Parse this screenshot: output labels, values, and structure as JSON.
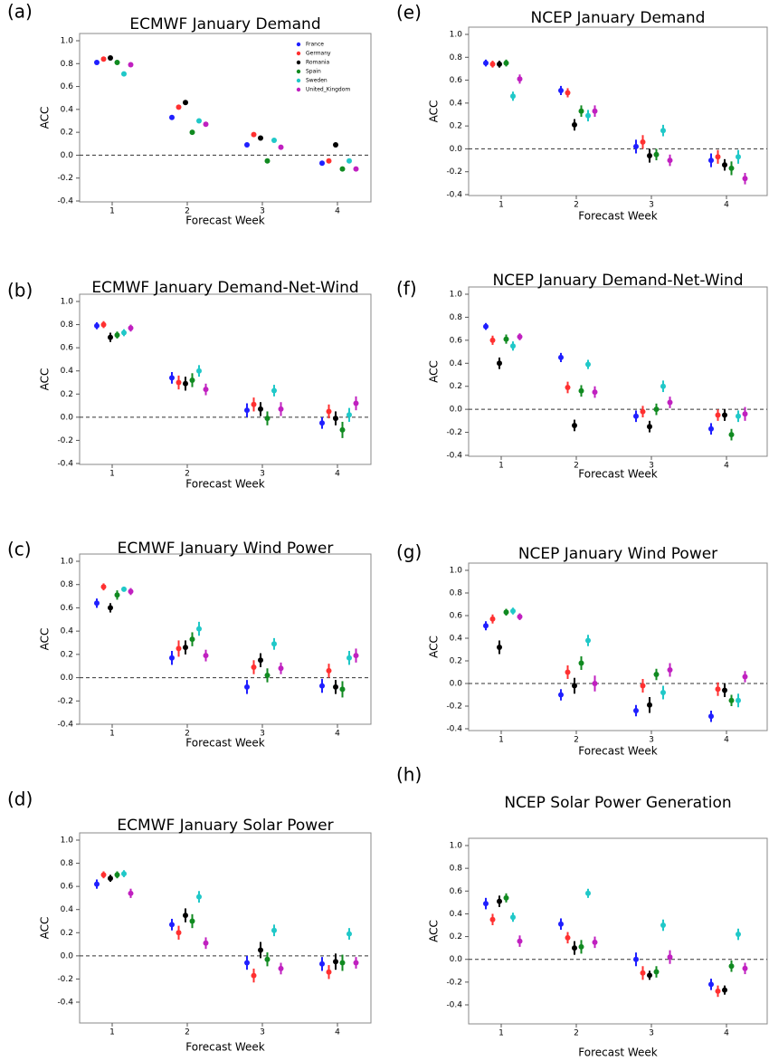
{
  "chart_data": [
    {
      "type": "point",
      "label": "(a)",
      "title": "ECMWF January Demand",
      "xlabel": "Forecast Week",
      "ylabel": "ACC",
      "categories": [
        "1",
        "2",
        "3",
        "4"
      ],
      "ylim": [
        -0.4,
        1.0
      ],
      "yticks": [
        -0.4,
        -0.2,
        {
          "value": 0,
          "label": "0.0"
        },
        0.2,
        0.4,
        0.6,
        0.8,
        {
          "value": 1,
          "label": "1.0"
        }
      ],
      "legend": "upper right",
      "series": [
        {
          "name": "France",
          "color": "#1f1fff",
          "values": [
            0.81,
            0.33,
            0.09,
            -0.07
          ]
        },
        {
          "name": "Germany",
          "color": "#ff3030",
          "values": [
            0.84,
            0.42,
            0.18,
            -0.05
          ]
        },
        {
          "name": "Romania",
          "color": "#000000",
          "values": [
            0.85,
            0.46,
            0.15,
            0.09
          ]
        },
        {
          "name": "Spain",
          "color": "#108a20",
          "values": [
            0.81,
            0.2,
            -0.05,
            -0.12
          ]
        },
        {
          "name": "Sweden",
          "color": "#20c8c8",
          "values": [
            0.71,
            0.3,
            0.13,
            -0.05
          ]
        },
        {
          "name": "United_Kingdom",
          "color": "#c020c0",
          "values": [
            0.79,
            0.27,
            0.07,
            -0.12
          ]
        }
      ]
    },
    {
      "type": "errorbar",
      "label": "(b)",
      "title": "ECMWF January Demand-Net-Wind",
      "xlabel": "Forecast Week",
      "ylabel": "ACC",
      "categories": [
        "1",
        "2",
        "3",
        "4"
      ],
      "ylim": [
        -0.4,
        1.0
      ],
      "yticks": [
        -0.4,
        -0.2,
        {
          "value": 0,
          "label": "0.0"
        },
        0.2,
        0.4,
        0.6,
        0.8,
        {
          "value": 1,
          "label": "1.0"
        }
      ],
      "series": [
        {
          "color": "#1f1fff",
          "values": [
            0.79,
            0.34,
            0.06,
            -0.05
          ],
          "errors": [
            0.03,
            0.05,
            0.06,
            0.05
          ]
        },
        {
          "color": "#ff3030",
          "values": [
            0.8,
            0.3,
            0.11,
            0.05
          ],
          "errors": [
            0.03,
            0.06,
            0.06,
            0.06
          ]
        },
        {
          "color": "#000000",
          "values": [
            0.69,
            0.29,
            0.07,
            -0.01
          ],
          "errors": [
            0.04,
            0.06,
            0.06,
            0.06
          ]
        },
        {
          "color": "#108a20",
          "values": [
            0.71,
            0.32,
            -0.01,
            -0.11
          ],
          "errors": [
            0.03,
            0.06,
            0.06,
            0.07
          ]
        },
        {
          "color": "#20c8c8",
          "values": [
            0.73,
            0.4,
            0.23,
            0.02
          ],
          "errors": [
            0.03,
            0.05,
            0.05,
            0.06
          ]
        },
        {
          "color": "#c020c0",
          "values": [
            0.77,
            0.24,
            0.07,
            0.12
          ],
          "errors": [
            0.03,
            0.05,
            0.06,
            0.06
          ]
        }
      ]
    },
    {
      "type": "errorbar",
      "label": "(c)",
      "title": "ECMWF January Wind Power",
      "xlabel": "Forecast Week",
      "ylabel": "ACC",
      "categories": [
        "1",
        "2",
        "3",
        "4"
      ],
      "ylim": [
        -0.4,
        1.0
      ],
      "yticks": [
        -0.4,
        -0.2,
        {
          "value": 0,
          "label": "0.0"
        },
        0.2,
        0.4,
        0.6,
        0.8,
        {
          "value": 1,
          "label": "1.0"
        }
      ],
      "series": [
        {
          "color": "#1f1fff",
          "values": [
            0.64,
            0.17,
            -0.08,
            -0.07
          ],
          "errors": [
            0.04,
            0.06,
            0.06,
            0.06
          ]
        },
        {
          "color": "#ff3030",
          "values": [
            0.78,
            0.25,
            0.09,
            0.06
          ],
          "errors": [
            0.03,
            0.07,
            0.06,
            0.06
          ]
        },
        {
          "color": "#000000",
          "values": [
            0.6,
            0.26,
            0.15,
            -0.08
          ],
          "errors": [
            0.04,
            0.06,
            0.06,
            0.06
          ]
        },
        {
          "color": "#108a20",
          "values": [
            0.71,
            0.33,
            0.02,
            -0.1
          ],
          "errors": [
            0.04,
            0.06,
            0.06,
            0.07
          ]
        },
        {
          "color": "#20c8c8",
          "values": [
            0.76,
            0.42,
            0.29,
            0.17
          ],
          "errors": [
            0.02,
            0.06,
            0.05,
            0.06
          ]
        },
        {
          "color": "#c020c0",
          "values": [
            0.74,
            0.19,
            0.08,
            0.19
          ],
          "errors": [
            0.03,
            0.05,
            0.05,
            0.06
          ]
        }
      ]
    },
    {
      "type": "errorbar",
      "label": "(d)",
      "title": "ECMWF January Solar Power",
      "xlabel": "Forecast Week",
      "ylabel": "ACC",
      "categories": [
        "1",
        "2",
        "3",
        "4"
      ],
      "ylim": [
        -0.4,
        1.0
      ],
      "yticks": [
        -0.4,
        -0.2,
        {
          "value": 0,
          "label": "0.0"
        },
        0.2,
        0.4,
        0.6,
        0.8,
        {
          "value": 1,
          "label": "1.0"
        }
      ],
      "series": [
        {
          "color": "#1f1fff",
          "values": [
            0.62,
            0.27,
            -0.06,
            -0.07
          ],
          "errors": [
            0.04,
            0.05,
            0.06,
            0.06
          ]
        },
        {
          "color": "#ff3030",
          "values": [
            0.7,
            0.2,
            -0.17,
            -0.14
          ],
          "errors": [
            0.03,
            0.06,
            0.06,
            0.06
          ]
        },
        {
          "color": "#000000",
          "values": [
            0.67,
            0.35,
            0.05,
            -0.05
          ],
          "errors": [
            0.03,
            0.06,
            0.07,
            0.07
          ]
        },
        {
          "color": "#108a20",
          "values": [
            0.7,
            0.3,
            -0.03,
            -0.06
          ],
          "errors": [
            0.03,
            0.06,
            0.06,
            0.07
          ]
        },
        {
          "color": "#20c8c8",
          "values": [
            0.71,
            0.51,
            0.22,
            0.19
          ],
          "errors": [
            0.03,
            0.05,
            0.05,
            0.05
          ]
        },
        {
          "color": "#c020c0",
          "values": [
            0.54,
            0.11,
            -0.11,
            -0.06
          ],
          "errors": [
            0.04,
            0.05,
            0.05,
            0.05
          ]
        }
      ]
    },
    {
      "type": "errorbar",
      "label": "(e)",
      "title": "NCEP January Demand",
      "xlabel": "Forecast Week",
      "ylabel": "ACC",
      "categories": [
        "1",
        "2",
        "3",
        "4"
      ],
      "ylim": [
        -0.4,
        1.0
      ],
      "yticks": [
        -0.4,
        -0.2,
        {
          "value": 0,
          "label": "0.0"
        },
        0.2,
        0.4,
        0.6,
        0.8,
        {
          "value": 1,
          "label": "1.0"
        }
      ],
      "series": [
        {
          "color": "#1f1fff",
          "values": [
            0.75,
            0.51,
            0.02,
            -0.1
          ],
          "errors": [
            0.03,
            0.04,
            0.06,
            0.06
          ]
        },
        {
          "color": "#ff3030",
          "values": [
            0.74,
            0.49,
            0.06,
            -0.07
          ],
          "errors": [
            0.03,
            0.04,
            0.06,
            0.06
          ]
        },
        {
          "color": "#000000",
          "values": [
            0.74,
            0.21,
            -0.06,
            -0.14
          ],
          "errors": [
            0.03,
            0.05,
            0.06,
            0.05
          ]
        },
        {
          "color": "#108a20",
          "values": [
            0.75,
            0.33,
            -0.05,
            -0.17
          ],
          "errors": [
            0.03,
            0.05,
            0.05,
            0.06
          ]
        },
        {
          "color": "#20c8c8",
          "values": [
            0.46,
            0.29,
            0.16,
            -0.07
          ],
          "errors": [
            0.04,
            0.05,
            0.05,
            0.06
          ]
        },
        {
          "color": "#c020c0",
          "values": [
            0.61,
            0.33,
            -0.1,
            -0.26
          ],
          "errors": [
            0.04,
            0.05,
            0.05,
            0.05
          ]
        }
      ]
    },
    {
      "type": "errorbar",
      "label": "(f)",
      "title": "NCEP January Demand-Net-Wind",
      "xlabel": "Forecast Week",
      "ylabel": "ACC",
      "categories": [
        "1",
        "2",
        "3",
        "4"
      ],
      "ylim": [
        -0.4,
        1.0
      ],
      "yticks": [
        -0.4,
        -0.2,
        {
          "value": 0,
          "label": "0.0"
        },
        0.2,
        0.4,
        0.6,
        0.8,
        {
          "value": 1,
          "label": "1.0"
        }
      ],
      "series": [
        {
          "color": "#1f1fff",
          "values": [
            0.72,
            0.45,
            -0.06,
            -0.17
          ],
          "errors": [
            0.03,
            0.04,
            0.05,
            0.05
          ]
        },
        {
          "color": "#ff3030",
          "values": [
            0.6,
            0.19,
            -0.02,
            -0.05
          ],
          "errors": [
            0.04,
            0.05,
            0.05,
            0.05
          ]
        },
        {
          "color": "#000000",
          "values": [
            0.4,
            -0.14,
            -0.15,
            -0.05
          ],
          "errors": [
            0.05,
            0.05,
            0.05,
            0.05
          ]
        },
        {
          "color": "#108a20",
          "values": [
            0.61,
            0.16,
            0.0,
            -0.22
          ],
          "errors": [
            0.04,
            0.05,
            0.05,
            0.05
          ]
        },
        {
          "color": "#20c8c8",
          "values": [
            0.55,
            0.39,
            0.2,
            -0.06
          ],
          "errors": [
            0.04,
            0.04,
            0.05,
            0.05
          ]
        },
        {
          "color": "#c020c0",
          "values": [
            0.63,
            0.15,
            0.06,
            -0.04
          ],
          "errors": [
            0.03,
            0.05,
            0.05,
            0.06
          ]
        }
      ]
    },
    {
      "type": "errorbar",
      "label": "(g)",
      "title": "NCEP January Wind Power",
      "xlabel": "Forecast Week",
      "ylabel": "ACC",
      "categories": [
        "1",
        "2",
        "3",
        "4"
      ],
      "ylim": [
        -0.4,
        1.0
      ],
      "yticks": [
        -0.4,
        -0.2,
        {
          "value": 0,
          "label": "0.0"
        },
        0.2,
        0.4,
        0.6,
        0.8,
        {
          "value": 1,
          "label": "1.0"
        }
      ],
      "series": [
        {
          "color": "#1f1fff",
          "values": [
            0.51,
            -0.1,
            -0.24,
            -0.29
          ],
          "errors": [
            0.04,
            0.05,
            0.05,
            0.05
          ]
        },
        {
          "color": "#ff3030",
          "values": [
            0.57,
            0.1,
            -0.02,
            -0.05
          ],
          "errors": [
            0.04,
            0.06,
            0.06,
            0.06
          ]
        },
        {
          "color": "#000000",
          "values": [
            0.32,
            -0.02,
            -0.19,
            -0.06
          ],
          "errors": [
            0.06,
            0.07,
            0.07,
            0.06
          ]
        },
        {
          "color": "#108a20",
          "values": [
            0.63,
            0.18,
            0.08,
            -0.15
          ],
          "errors": [
            0.03,
            0.06,
            0.05,
            0.05
          ]
        },
        {
          "color": "#20c8c8",
          "values": [
            0.64,
            0.38,
            -0.08,
            -0.15
          ],
          "errors": [
            0.03,
            0.05,
            0.06,
            0.06
          ]
        },
        {
          "color": "#c020c0",
          "values": [
            0.59,
            0.0,
            0.12,
            0.06
          ],
          "errors": [
            0.03,
            0.07,
            0.06,
            0.05
          ]
        }
      ]
    },
    {
      "type": "errorbar",
      "label": "(h)",
      "title": "NCEP Solar Power Generation",
      "xlabel": "Forecast Week",
      "ylabel": "ACC",
      "categories": [
        "1",
        "2",
        "3",
        "4"
      ],
      "ylim": [
        -0.4,
        1.0
      ],
      "yticks": [
        -0.4,
        -0.2,
        {
          "value": 0,
          "label": "0.0"
        },
        0.2,
        0.4,
        0.6,
        0.8,
        {
          "value": 1,
          "label": "1.0"
        }
      ],
      "series": [
        {
          "color": "#1f1fff",
          "values": [
            0.49,
            0.31,
            0.0,
            -0.22
          ],
          "errors": [
            0.05,
            0.05,
            0.06,
            0.05
          ]
        },
        {
          "color": "#ff3030",
          "values": [
            0.35,
            0.19,
            -0.12,
            -0.28
          ],
          "errors": [
            0.05,
            0.05,
            0.06,
            0.05
          ]
        },
        {
          "color": "#000000",
          "values": [
            0.51,
            0.1,
            -0.14,
            -0.27
          ],
          "errors": [
            0.05,
            0.06,
            0.04,
            0.04
          ]
        },
        {
          "color": "#108a20",
          "values": [
            0.54,
            0.11,
            -0.11,
            -0.06
          ],
          "errors": [
            0.04,
            0.06,
            0.05,
            0.05
          ]
        },
        {
          "color": "#20c8c8",
          "values": [
            0.37,
            0.58,
            0.3,
            0.22
          ],
          "errors": [
            0.04,
            0.04,
            0.05,
            0.05
          ]
        },
        {
          "color": "#c020c0",
          "values": [
            0.16,
            0.15,
            0.02,
            -0.08
          ],
          "errors": [
            0.05,
            0.05,
            0.06,
            0.05
          ]
        }
      ]
    }
  ]
}
